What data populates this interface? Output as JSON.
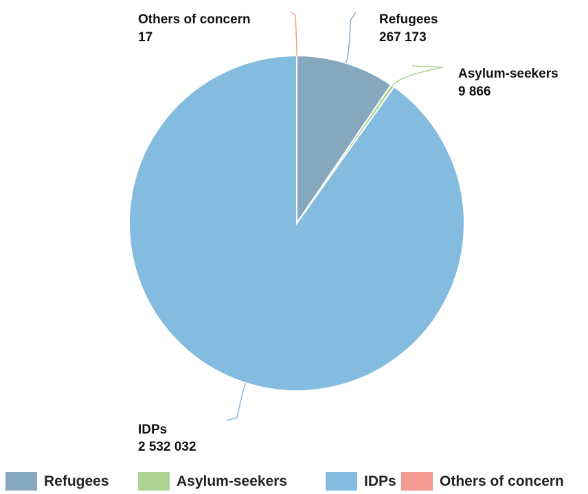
{
  "chart_data": {
    "type": "pie",
    "title": "",
    "series": [
      {
        "name": "Refugees",
        "value": 267173,
        "label": "267 173",
        "color": "#86a8be"
      },
      {
        "name": "Asylum-seekers",
        "value": 9866,
        "label": "9 866",
        "color": "#acd394"
      },
      {
        "name": "IDPs",
        "value": 2532032,
        "label": "2 532 032",
        "color": "#83bcdf"
      },
      {
        "name": "Others of concern",
        "value": 17,
        "label": "17",
        "color": "#f39a91"
      }
    ],
    "legend": {
      "position": "bottom"
    }
  }
}
